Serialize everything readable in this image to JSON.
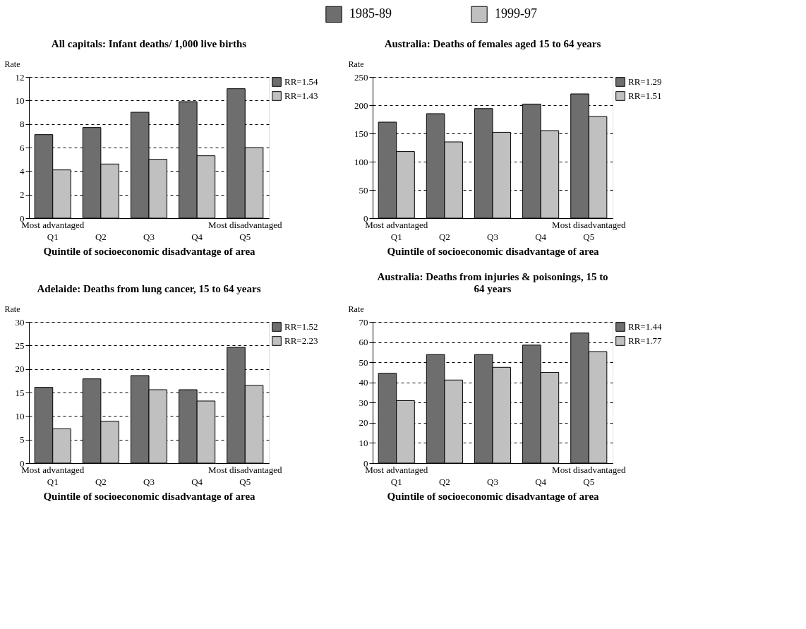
{
  "chart_data": [
    {
      "type": "bar",
      "title": "All capitals: Infant deaths/ 1,000 live births",
      "ylabel": "Rate",
      "xlabel": "Quintile of socioeconomic disadvantage of area",
      "categories": [
        "Q1",
        "Q2",
        "Q3",
        "Q4",
        "Q5"
      ],
      "series": [
        {
          "name": "RR=1.54",
          "color": "#6e6e6e",
          "values": [
            7.1,
            7.7,
            9.0,
            9.9,
            11.0
          ]
        },
        {
          "name": "RR=1.43",
          "color": "#c0c0c0",
          "values": [
            4.1,
            4.6,
            5.0,
            5.3,
            6.0
          ]
        }
      ],
      "ylim": [
        0,
        12
      ],
      "yticks": [
        0,
        2,
        4,
        6,
        8,
        10,
        12
      ],
      "grid": "y",
      "legend": "right",
      "annotations": [
        "1985-89",
        "1999-97",
        "Most advantaged",
        "Most disadvantaged"
      ]
    },
    {
      "type": "bar",
      "title": "Australia: Deaths of females aged 15 to 64 years",
      "ylabel": "Rate",
      "xlabel": "Quintile of socioeconomic disadvantage of area",
      "categories": [
        "Q1",
        "Q2",
        "Q3",
        "Q4",
        "Q5"
      ],
      "series": [
        {
          "name": "RR=1.29",
          "color": "#6e6e6e",
          "values": [
            170,
            185,
            194,
            202,
            220
          ]
        },
        {
          "name": "RR=1.51",
          "color": "#c0c0c0",
          "values": [
            118,
            135,
            152,
            155,
            180
          ]
        }
      ],
      "ylim": [
        0,
        250
      ],
      "yticks": [
        0,
        50,
        100,
        150,
        200,
        250
      ],
      "grid": "y",
      "legend": "right",
      "annotations": [
        "Most advantaged",
        "Most disadvantaged"
      ]
    },
    {
      "type": "bar",
      "title": "Adelaide: Deaths from lung cancer, 15 to 64 years",
      "ylabel": "Rate",
      "xlabel": "Quintile of socioeconomic disadvantage of area",
      "categories": [
        "Q1",
        "Q2",
        "Q3",
        "Q4",
        "Q5"
      ],
      "series": [
        {
          "name": "RR=1.52",
          "color": "#6e6e6e",
          "values": [
            16.1,
            17.9,
            18.6,
            15.6,
            24.6
          ]
        },
        {
          "name": "RR=2.23",
          "color": "#c0c0c0",
          "values": [
            7.3,
            8.9,
            15.6,
            13.2,
            16.5
          ]
        }
      ],
      "ylim": [
        0,
        30
      ],
      "yticks": [
        0,
        5,
        10,
        15,
        20,
        25,
        30
      ],
      "grid": "y",
      "legend": "right",
      "annotations": [
        "Most advantaged",
        "Most disadvantaged"
      ]
    },
    {
      "type": "bar",
      "title": "Australia: Deaths from injuries & poisonings, 15 to 64 years",
      "ylabel": "Rate",
      "xlabel": "Quintile of socioeconomic disadvantage of area",
      "categories": [
        "Q1",
        "Q2",
        "Q3",
        "Q4",
        "Q5"
      ],
      "series": [
        {
          "name": "RR=1.44",
          "color": "#6e6e6e",
          "values": [
            44.5,
            53.8,
            53.8,
            58.5,
            64.5
          ]
        },
        {
          "name": "RR=1.77",
          "color": "#c0c0c0",
          "values": [
            31,
            41.2,
            47.5,
            45,
            55.3
          ]
        }
      ],
      "ylim": [
        0,
        70
      ],
      "yticks": [
        0,
        10,
        20,
        30,
        40,
        50,
        60,
        70
      ],
      "grid": "y",
      "legend": "right",
      "annotations": [
        "Most advantaged",
        "Most disadvantaged"
      ]
    }
  ]
}
